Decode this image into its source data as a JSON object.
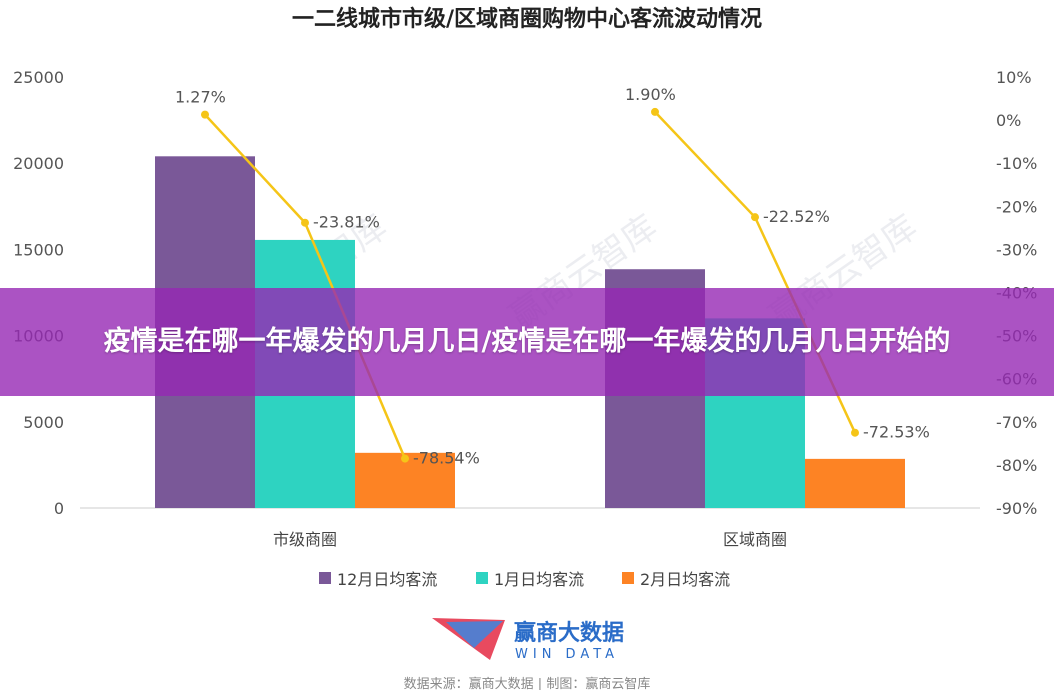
{
  "chart_data": {
    "type": "bar",
    "title": "一二线城市市级/区域商圈购物中心客流波动情况",
    "categories": [
      "市级商圈",
      "区域商圈"
    ],
    "series": [
      {
        "name": "12月日均客流",
        "type": "bar",
        "axis": "left",
        "color": "#7a5898",
        "values": [
          20400,
          13850
        ]
      },
      {
        "name": "1月日均客流",
        "type": "bar",
        "axis": "left",
        "color": "#2ed3c1",
        "values": [
          15550,
          11000
        ]
      },
      {
        "name": "2月日均客流",
        "type": "bar",
        "axis": "left",
        "color": "#fd8324",
        "values": [
          3200,
          2850
        ]
      }
    ],
    "lines": [
      {
        "axis": "right",
        "color": "#f5c518",
        "values": [
          1.27,
          -23.81,
          -78.54
        ],
        "labels": [
          "1.27%",
          "-23.81%",
          "-78.54%"
        ]
      },
      {
        "axis": "right",
        "color": "#f5c518",
        "values": [
          1.9,
          -22.52,
          -72.53
        ],
        "labels": [
          "1.90%",
          "-22.52%",
          "-72.53%"
        ]
      }
    ],
    "left_axis": {
      "min": 0,
      "max": 25000,
      "step": 5000,
      "ticks": [
        "0",
        "5000",
        "10000",
        "15000",
        "20000",
        "25000"
      ]
    },
    "right_axis": {
      "min": -90,
      "max": 10,
      "step": 10,
      "ticks": [
        "-90%",
        "-80%",
        "-70%",
        "-60%",
        "-50%",
        "-40%",
        "-30%",
        "-20%",
        "-10%",
        "0%",
        "10%"
      ]
    },
    "legend": {
      "placement": "bottom"
    },
    "grid": false
  },
  "banner": {
    "text": "疫情是在哪一年爆发的几月几日/疫情是在哪一年爆发的几月几日开始的"
  },
  "logo": {
    "name": "赢商大数据",
    "sub": "WIN DATA"
  },
  "source_text": "数据来源：赢商大数据 | 制图：赢商云智库",
  "watermarks": [
    "赢商云智库",
    "赢商云智库",
    "赢商云智库"
  ]
}
